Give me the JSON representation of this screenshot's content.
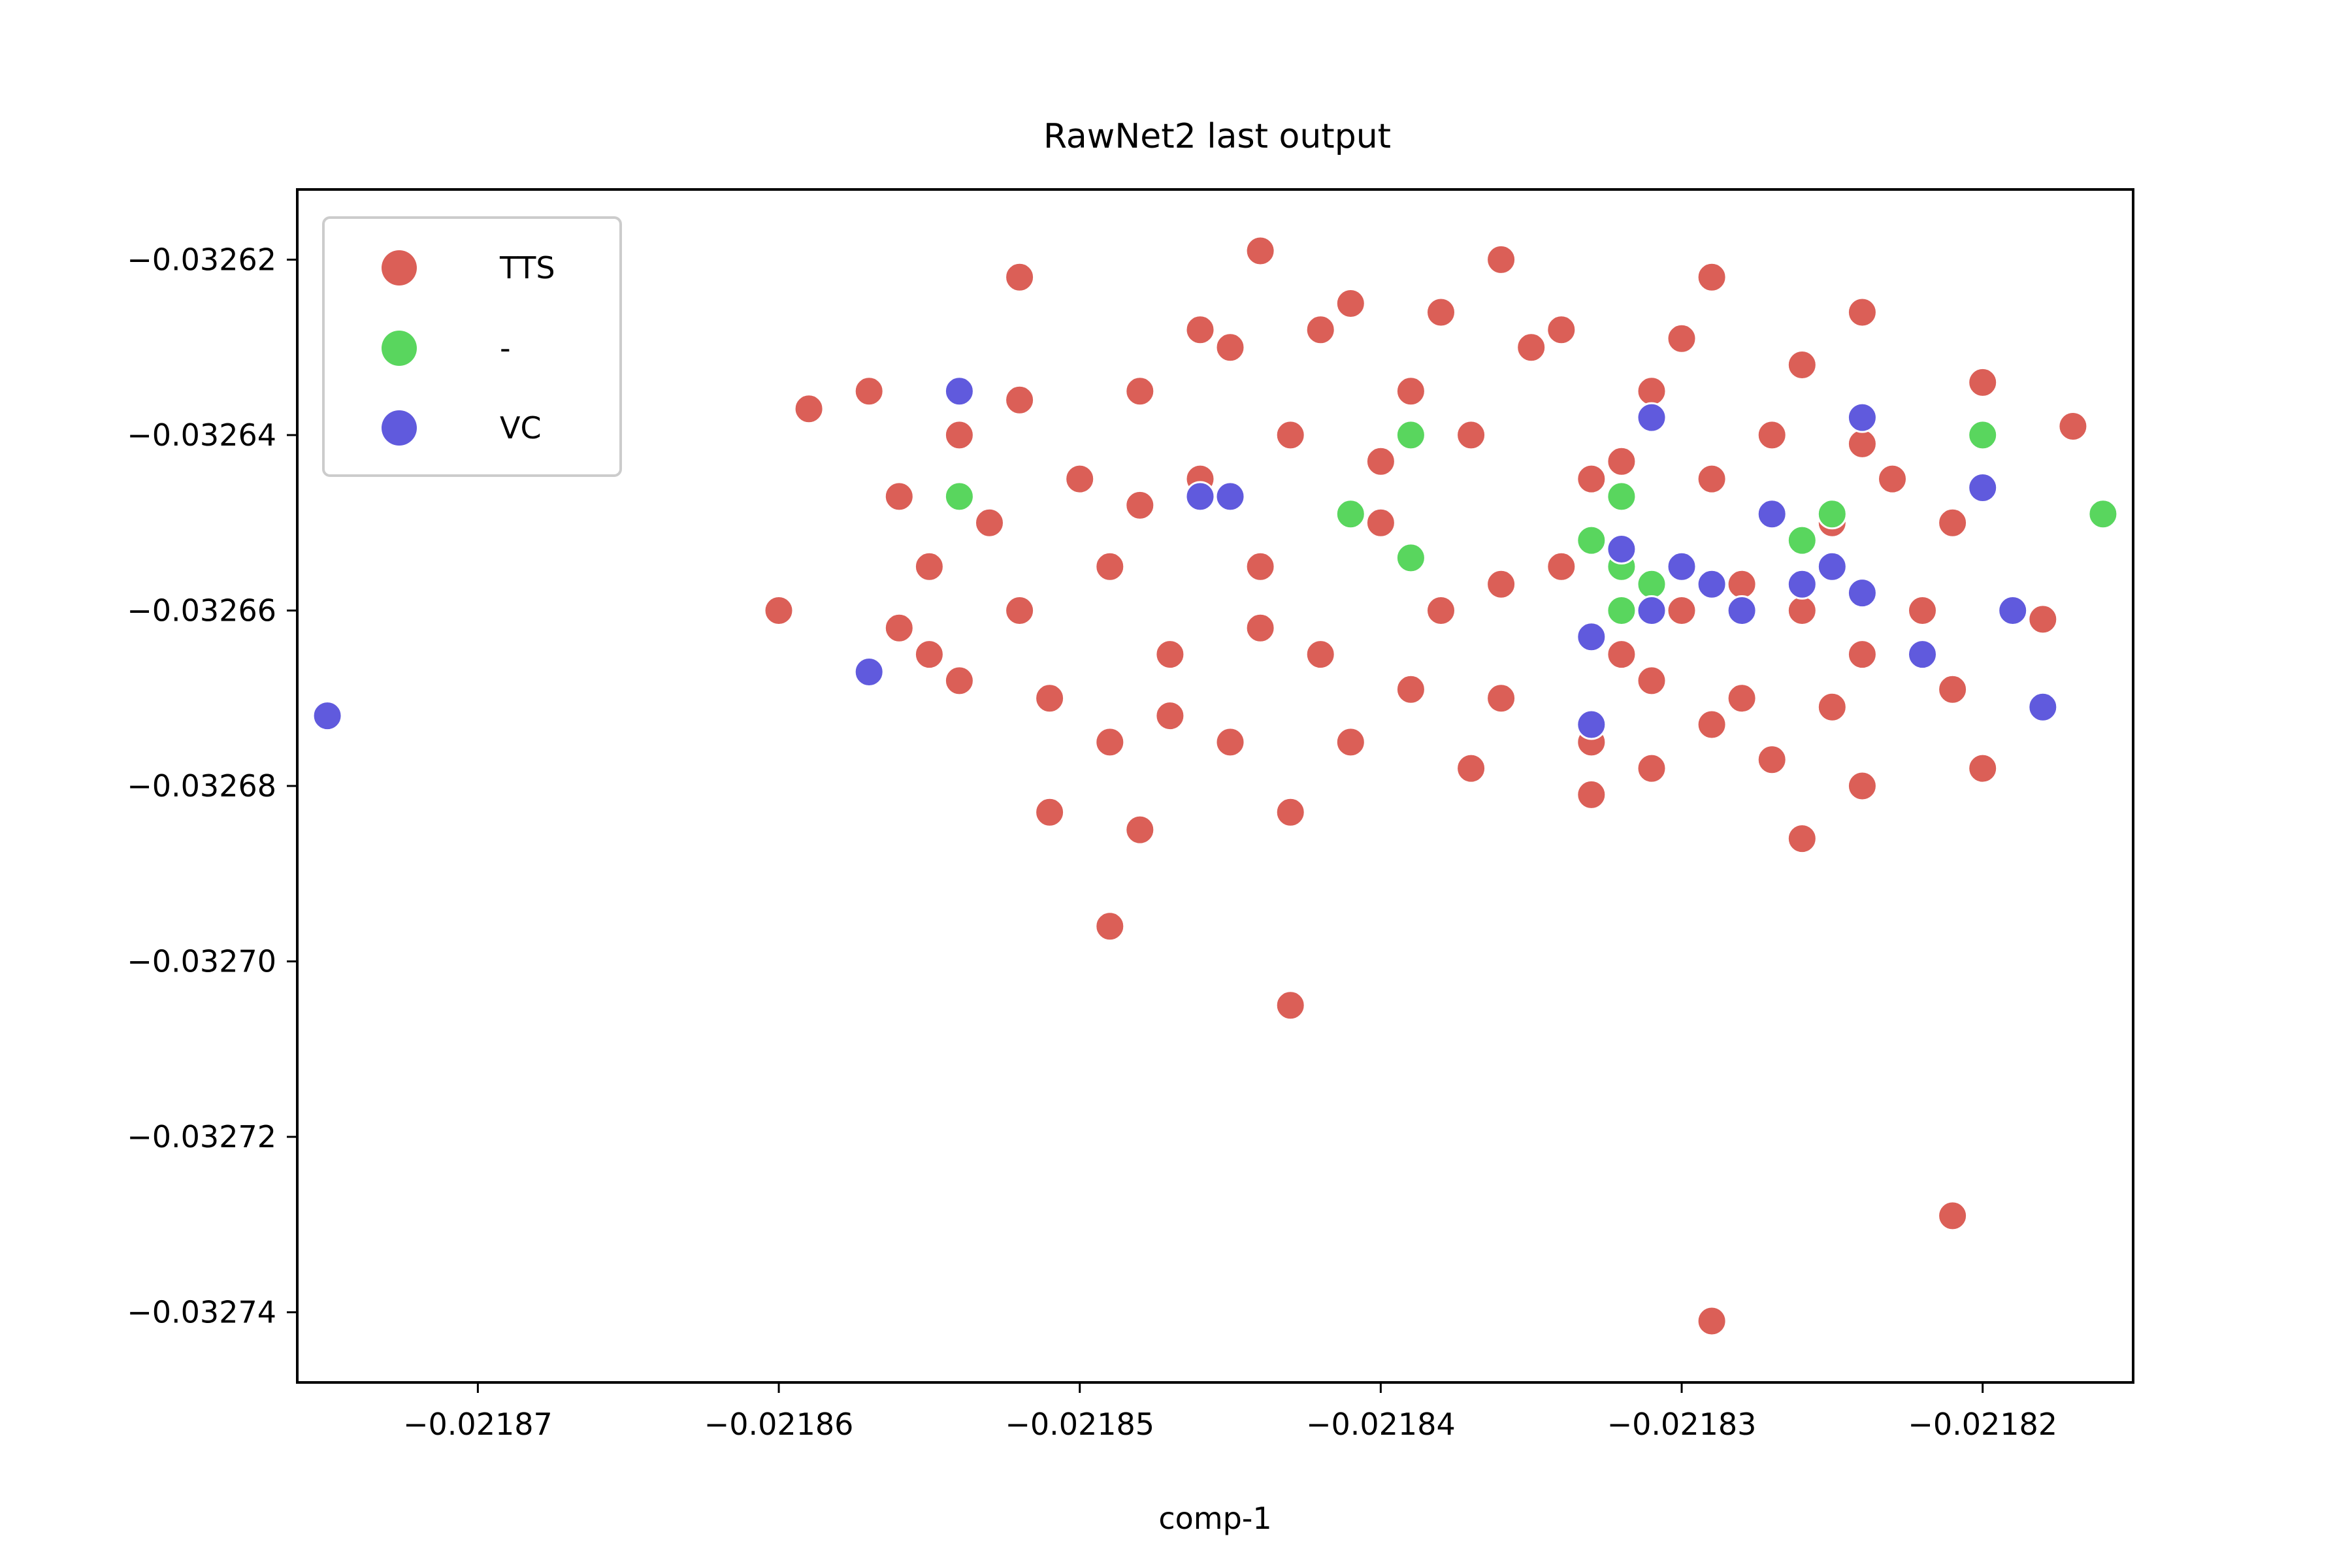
{
  "chart_data": {
    "type": "scatter",
    "title": "RawNet2 last output",
    "xlabel": "comp-1",
    "ylabel": "",
    "xlim": [
      -0.021876,
      -0.021815
    ],
    "ylim": [
      -0.032748,
      -0.032612
    ],
    "x_ticks": [
      -0.02187,
      -0.02186,
      -0.02185,
      -0.02184,
      -0.02183,
      -0.02182
    ],
    "x_tick_labels": [
      "−0.02187",
      "−0.02186",
      "−0.02185",
      "−0.02184",
      "−0.02183",
      "−0.02182"
    ],
    "y_ticks": [
      -0.03262,
      -0.03264,
      -0.03266,
      -0.03268,
      -0.0327,
      -0.03272,
      -0.03274
    ],
    "y_tick_labels": [
      "−0.03262",
      "−0.03264",
      "−0.03266",
      "−0.03268",
      "−0.03270",
      "−0.03272",
      "−0.03274"
    ],
    "grid": false,
    "legend_position": "upper-left",
    "series": [
      {
        "name": "TTS",
        "color": "#db5f57",
        "points": [
          [
            -0.021859,
            -0.032637
          ],
          [
            -0.02186,
            -0.03266
          ],
          [
            -0.021852,
            -0.032622
          ],
          [
            -0.021844,
            -0.032619
          ],
          [
            -0.021836,
            -0.03262
          ],
          [
            -0.021829,
            -0.032622
          ],
          [
            -0.021824,
            -0.032626
          ],
          [
            -0.02182,
            -0.032634
          ],
          [
            -0.021817,
            -0.032639
          ],
          [
            -0.021818,
            -0.032661
          ],
          [
            -0.021821,
            -0.032669
          ],
          [
            -0.02182,
            -0.032678
          ],
          [
            -0.021824,
            -0.03268
          ],
          [
            -0.021826,
            -0.032686
          ],
          [
            -0.021827,
            -0.032677
          ],
          [
            -0.021831,
            -0.032678
          ],
          [
            -0.021833,
            -0.032681
          ],
          [
            -0.021843,
            -0.032683
          ],
          [
            -0.021848,
            -0.032685
          ],
          [
            -0.021849,
            -0.032696
          ],
          [
            -0.021843,
            -0.032705
          ],
          [
            -0.021829,
            -0.032741
          ],
          [
            -0.021821,
            -0.032729
          ],
          [
            -0.021851,
            -0.032683
          ],
          [
            -0.021857,
            -0.032635
          ],
          [
            -0.021854,
            -0.03264
          ],
          [
            -0.021855,
            -0.032665
          ],
          [
            -0.021855,
            -0.032655
          ],
          [
            -0.021853,
            -0.03265
          ],
          [
            -0.021852,
            -0.03266
          ],
          [
            -0.02185,
            -0.032645
          ],
          [
            -0.021849,
            -0.032655
          ],
          [
            -0.021848,
            -0.032635
          ],
          [
            -0.021847,
            -0.032665
          ],
          [
            -0.021846,
            -0.032645
          ],
          [
            -0.021845,
            -0.03263
          ],
          [
            -0.021844,
            -0.032655
          ],
          [
            -0.021843,
            -0.03264
          ],
          [
            -0.021842,
            -0.032665
          ],
          [
            -0.021841,
            -0.032625
          ],
          [
            -0.02184,
            -0.03265
          ],
          [
            -0.021839,
            -0.032635
          ],
          [
            -0.021838,
            -0.03266
          ],
          [
            -0.021837,
            -0.03264
          ],
          [
            -0.021836,
            -0.03267
          ],
          [
            -0.021835,
            -0.03263
          ],
          [
            -0.021834,
            -0.032655
          ],
          [
            -0.021833,
            -0.032645
          ],
          [
            -0.021832,
            -0.032665
          ],
          [
            -0.021831,
            -0.032635
          ],
          [
            -0.02183,
            -0.03266
          ],
          [
            -0.021829,
            -0.032645
          ],
          [
            -0.021828,
            -0.03267
          ],
          [
            -0.021827,
            -0.03264
          ],
          [
            -0.021826,
            -0.03266
          ],
          [
            -0.021825,
            -0.03265
          ],
          [
            -0.021824,
            -0.032665
          ],
          [
            -0.021823,
            -0.032645
          ],
          [
            -0.021822,
            -0.03266
          ],
          [
            -0.021821,
            -0.03265
          ],
          [
            -0.021851,
            -0.03267
          ],
          [
            -0.021849,
            -0.032675
          ],
          [
            -0.021845,
            -0.032675
          ],
          [
            -0.021841,
            -0.032675
          ],
          [
            -0.021837,
            -0.032678
          ],
          [
            -0.021833,
            -0.032675
          ],
          [
            -0.021829,
            -0.032673
          ],
          [
            -0.021825,
            -0.032671
          ],
          [
            -0.021846,
            -0.032628
          ],
          [
            -0.021842,
            -0.032628
          ],
          [
            -0.021838,
            -0.032626
          ],
          [
            -0.021834,
            -0.032628
          ],
          [
            -0.02183,
            -0.032629
          ],
          [
            -0.021826,
            -0.032632
          ],
          [
            -0.021856,
            -0.032647
          ],
          [
            -0.021856,
            -0.032662
          ],
          [
            -0.021854,
            -0.032668
          ],
          [
            -0.021852,
            -0.032636
          ],
          [
            -0.021848,
            -0.032648
          ],
          [
            -0.021844,
            -0.032662
          ],
          [
            -0.02184,
            -0.032643
          ],
          [
            -0.021836,
            -0.032657
          ],
          [
            -0.021832,
            -0.032643
          ],
          [
            -0.021828,
            -0.032657
          ],
          [
            -0.021824,
            -0.032641
          ],
          [
            -0.021839,
            -0.032669
          ],
          [
            -0.021847,
            -0.032672
          ],
          [
            -0.021831,
            -0.032668
          ]
        ]
      },
      {
        "name": "-",
        "color": "#59d65e",
        "points": [
          [
            -0.021816,
            -0.032649
          ],
          [
            -0.02182,
            -0.03264
          ],
          [
            -0.021839,
            -0.03264
          ],
          [
            -0.021841,
            -0.032649
          ],
          [
            -0.021839,
            -0.032654
          ],
          [
            -0.021833,
            -0.032652
          ],
          [
            -0.021832,
            -0.032655
          ],
          [
            -0.021831,
            -0.032657
          ],
          [
            -0.021832,
            -0.03266
          ],
          [
            -0.021826,
            -0.032652
          ],
          [
            -0.021825,
            -0.032649
          ],
          [
            -0.021854,
            -0.032647
          ],
          [
            -0.021832,
            -0.032647
          ]
        ]
      },
      {
        "name": "VC",
        "color": "#605add",
        "points": [
          [
            -0.021875,
            -0.032672
          ],
          [
            -0.021857,
            -0.032667
          ],
          [
            -0.021854,
            -0.032635
          ],
          [
            -0.021846,
            -0.032647
          ],
          [
            -0.021845,
            -0.032647
          ],
          [
            -0.021831,
            -0.032638
          ],
          [
            -0.021824,
            -0.032638
          ],
          [
            -0.02182,
            -0.032646
          ],
          [
            -0.021818,
            -0.032671
          ],
          [
            -0.021832,
            -0.032653
          ],
          [
            -0.02183,
            -0.032655
          ],
          [
            -0.021829,
            -0.032657
          ],
          [
            -0.021828,
            -0.03266
          ],
          [
            -0.021826,
            -0.032657
          ],
          [
            -0.021825,
            -0.032655
          ],
          [
            -0.021824,
            -0.032658
          ],
          [
            -0.021833,
            -0.032663
          ],
          [
            -0.021833,
            -0.032673
          ],
          [
            -0.021822,
            -0.032665
          ],
          [
            -0.021819,
            -0.03266
          ],
          [
            -0.021827,
            -0.032649
          ],
          [
            -0.021831,
            -0.03266
          ]
        ]
      }
    ]
  }
}
